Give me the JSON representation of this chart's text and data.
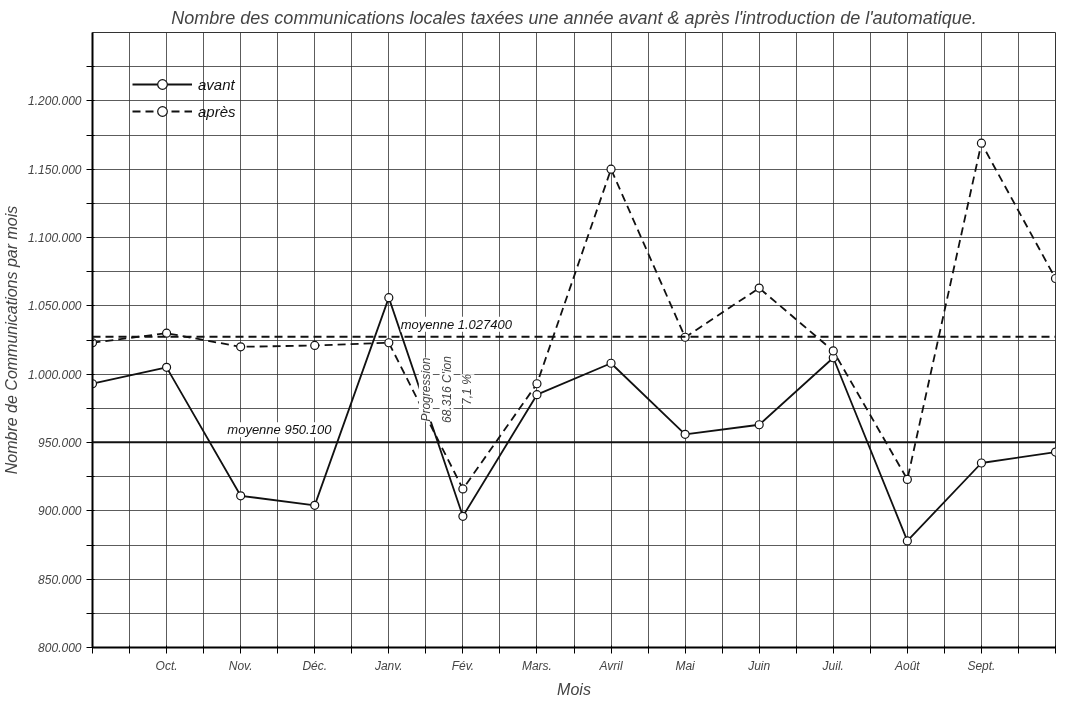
{
  "chart_data": {
    "type": "line",
    "title": "Nombre des communications locales taxées une année avant & après l'introduction de l'automatique.",
    "xlabel": "Mois",
    "ylabel": "Nombre de Communications par mois",
    "categories": [
      null,
      "Oct.",
      "Nov.",
      "Déc.",
      "Janv.",
      "Fév.",
      "Mars.",
      "Avril",
      "Mai",
      "Juin",
      "Juil.",
      "Août",
      "Sept.",
      null
    ],
    "series": [
      {
        "name": "avant",
        "color": "#111111",
        "line_style": "solid",
        "values": [
          993000,
          1005000,
          911000,
          904000,
          1056000,
          896000,
          985000,
          1008000,
          956000,
          963000,
          1012000,
          878000,
          935000,
          943000
        ]
      },
      {
        "name": "après",
        "color": "#111111",
        "line_style": "dashed",
        "values": [
          1023000,
          1030000,
          1020000,
          1021000,
          1023000,
          916000,
          993000,
          1150000,
          1027000,
          1063000,
          1017000,
          923000,
          1169000,
          1070000
        ]
      }
    ],
    "ylim": [
      800000,
      1250000
    ],
    "yticks": [
      {
        "value": 800000,
        "label": "800.000"
      },
      {
        "value": 825000,
        "label": null
      },
      {
        "value": 850000,
        "label": "850.000"
      },
      {
        "value": 875000,
        "label": null
      },
      {
        "value": 900000,
        "label": "900.000"
      },
      {
        "value": 925000,
        "label": null
      },
      {
        "value": 950000,
        "label": "950.000"
      },
      {
        "value": 975000,
        "label": null
      },
      {
        "value": 1000000,
        "label": "1.000.000"
      },
      {
        "value": 1025000,
        "label": null
      },
      {
        "value": 1050000,
        "label": "1.050.000"
      },
      {
        "value": 1075000,
        "label": null
      },
      {
        "value": 1100000,
        "label": "1.100.000"
      },
      {
        "value": 1125000,
        "label": null
      },
      {
        "value": 1150000,
        "label": "1.150.000"
      },
      {
        "value": 1175000,
        "label": null
      },
      {
        "value": 1200000,
        "label": "1.200.000"
      },
      {
        "value": 1225000,
        "label": null
      }
    ],
    "ref_lines": [
      {
        "axis": "y",
        "value": 950100,
        "label": "moyenne 950.100",
        "color": "#111111",
        "line_style": "solid"
      },
      {
        "axis": "y",
        "value": 1027400,
        "label": "moyenne 1.027400",
        "color": "#111111",
        "line_style": "dashed"
      }
    ],
    "annotations": [
      "Progression",
      "68.316 C'ion",
      "7,1 %"
    ],
    "grid": true,
    "legend": "top left",
    "marker": "circle"
  }
}
